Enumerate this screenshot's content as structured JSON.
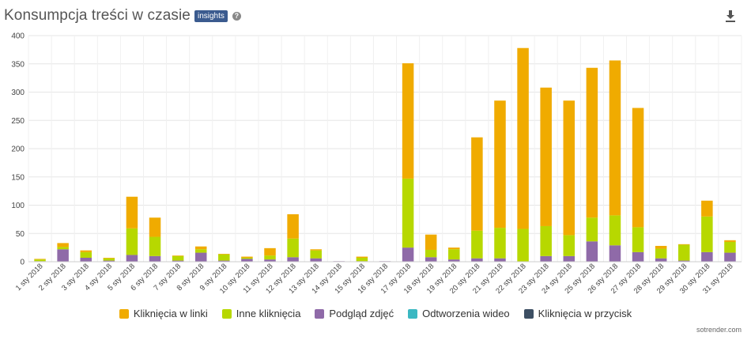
{
  "header": {
    "title": "Konsumpcja treści w czasie",
    "badge": "insights",
    "help_symbol": "?"
  },
  "credit": "sotrender.com",
  "colors": {
    "links": "#f0ab00",
    "other": "#b7d800",
    "photo": "#8f6aa8",
    "video": "#3bb8c2",
    "button": "#3d4f63",
    "grid": "#e6e6e6",
    "axis_text": "#444444"
  },
  "chart_data": {
    "type": "bar",
    "stacked": true,
    "ylim": [
      0,
      400
    ],
    "yticks": [
      0,
      50,
      100,
      150,
      200,
      250,
      300,
      350,
      400
    ],
    "grid": true,
    "legend_position": "bottom",
    "categories": [
      "1 sty 2018",
      "2 sty 2018",
      "3 sty 2018",
      "4 sty 2018",
      "5 sty 2018",
      "6 sty 2018",
      "7 sty 2018",
      "8 sty 2018",
      "9 sty 2018",
      "10 sty 2018",
      "11 sty 2018",
      "12 sty 2018",
      "13 sty 2018",
      "14 sty 2018",
      "15 sty 2018",
      "16 sty 2018",
      "17 sty 2018",
      "18 sty 2018",
      "19 sty 2018",
      "20 sty 2018",
      "21 sty 2018",
      "22 sty 2018",
      "23 sty 2018",
      "24 sty 2018",
      "25 sty 2018",
      "26 sty 2018",
      "27 sty 2018",
      "28 sty 2018",
      "29 sty 2018",
      "30 sty 2018",
      "31 sty 2018"
    ],
    "series": [
      {
        "name": "Kliknięcia w przycisk",
        "key": "button",
        "values": [
          0,
          0,
          0,
          0,
          0,
          0,
          0,
          0,
          0,
          0,
          0,
          0,
          0,
          0,
          0,
          0,
          0,
          0,
          0,
          0,
          0,
          0,
          0,
          0,
          0,
          0,
          0,
          0,
          0,
          0,
          0
        ]
      },
      {
        "name": "Odtworzenia wideo",
        "key": "video",
        "values": [
          0,
          0,
          0,
          0,
          0,
          0,
          0,
          0,
          0,
          0,
          0,
          0,
          0,
          0,
          0,
          0,
          0,
          0,
          0,
          0,
          0,
          0,
          0,
          0,
          0,
          0,
          0,
          0,
          0,
          0,
          0
        ]
      },
      {
        "name": "Podgląd zdjęć",
        "key": "photo",
        "values": [
          1,
          22,
          7,
          2,
          12,
          10,
          2,
          16,
          2,
          5,
          4,
          8,
          6,
          1,
          1,
          1,
          25,
          8,
          4,
          6,
          6,
          0,
          10,
          10,
          36,
          29,
          17,
          6,
          2,
          17,
          16
        ]
      },
      {
        "name": "Inne kliknięcia",
        "key": "other",
        "values": [
          3,
          4,
          10,
          4,
          47,
          34,
          8,
          6,
          11,
          2,
          7,
          33,
          14,
          0,
          6,
          0,
          122,
          13,
          18,
          49,
          54,
          58,
          53,
          37,
          42,
          53,
          44,
          17,
          28,
          63,
          19
        ]
      },
      {
        "name": "Kliknięcia w linki",
        "key": "links",
        "values": [
          1,
          7,
          3,
          1,
          56,
          34,
          1,
          5,
          1,
          2,
          13,
          43,
          2,
          0,
          2,
          0,
          204,
          27,
          3,
          165,
          225,
          320,
          245,
          238,
          265,
          274,
          211,
          5,
          1,
          28,
          3
        ]
      }
    ],
    "legend_order": [
      "links",
      "other",
      "photo",
      "video",
      "button"
    ]
  }
}
